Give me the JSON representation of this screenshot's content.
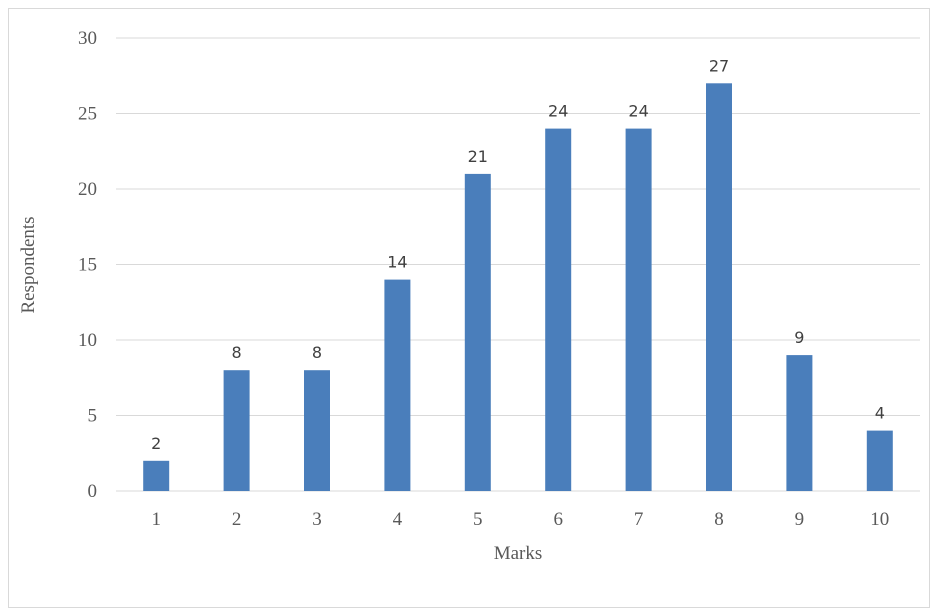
{
  "chart_data": {
    "type": "bar",
    "categories": [
      "1",
      "2",
      "3",
      "4",
      "5",
      "6",
      "7",
      "8",
      "9",
      "10"
    ],
    "values": [
      2,
      8,
      8,
      14,
      21,
      24,
      24,
      27,
      9,
      4
    ],
    "xlabel": "Marks",
    "ylabel": "Respondents",
    "ylim": [
      0,
      30
    ],
    "yticks": [
      "0",
      "5",
      "10",
      "15",
      "20",
      "25",
      "30"
    ],
    "data_labels": [
      "2",
      "8",
      "8",
      "14",
      "21",
      "24",
      "24",
      "27",
      "9",
      "4"
    ],
    "grid": true,
    "legend": "none",
    "bar_color": "#4a7ebb"
  }
}
